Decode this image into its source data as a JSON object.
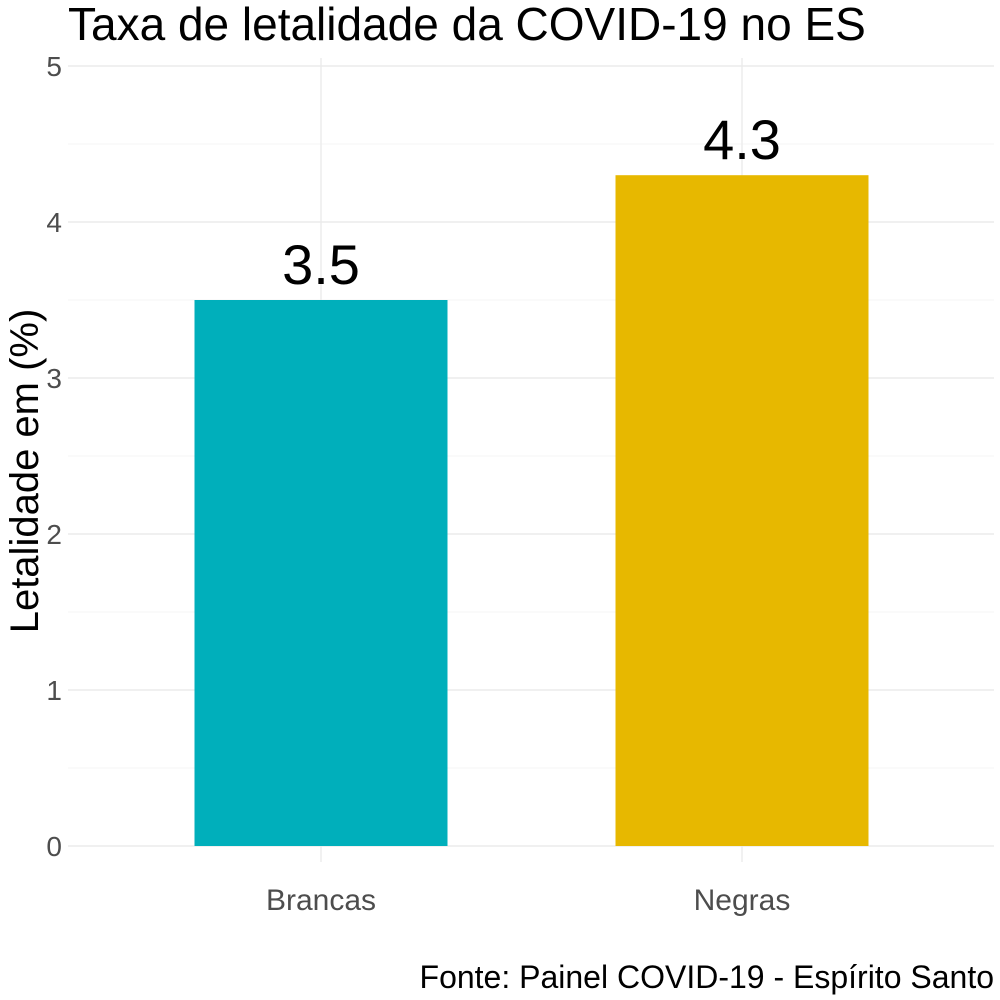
{
  "chart_data": {
    "type": "bar",
    "title": "Taxa de letalidade da COVID-19 no ES",
    "xlabel": "",
    "ylabel": "Letalidade em (%)",
    "categories": [
      "Brancas",
      "Negras"
    ],
    "values": [
      3.5,
      4.3
    ],
    "value_labels": [
      "3.5",
      "4.3"
    ],
    "colors": [
      "#00AFBB",
      "#E7B800"
    ],
    "ylim": [
      0,
      5
    ],
    "yticks": [
      0,
      1,
      2,
      3,
      4,
      5
    ],
    "ytick_labels": [
      "0",
      "1",
      "2",
      "3",
      "4",
      "5"
    ],
    "grid": true,
    "legend": "none",
    "caption": "Fonte: Painel COVID-19 - Espírito Santo"
  }
}
